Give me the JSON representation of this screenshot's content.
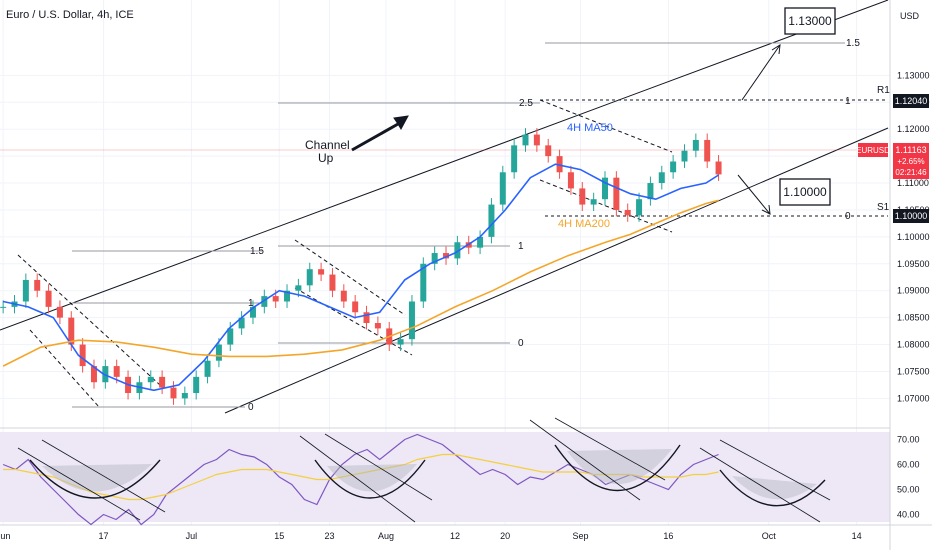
{
  "header": {
    "title": "Euro / U.S. Dollar, 4h, ICE",
    "currency": "USD"
  },
  "chart_data": [
    {
      "type": "candlestick",
      "title": "Euro / U.S. Dollar, 4h, ICE",
      "ylim": [
        1.0645,
        1.144
      ],
      "y_ticks": [
        "1.13000",
        "1.12500",
        "1.12000",
        "1.11500",
        "1.11000",
        "1.10500",
        "1.10000",
        "1.09500",
        "1.09000",
        "1.08500",
        "1.08000",
        "1.07500",
        "1.07000"
      ],
      "y_tick_values": [
        1.13,
        1.125,
        1.12,
        1.115,
        1.11,
        1.105,
        1.1,
        1.095,
        1.09,
        1.085,
        1.08,
        1.075,
        1.07
      ],
      "x_ticks": [
        "Jun",
        "17",
        "Jul",
        "15",
        "23",
        "Aug",
        "12",
        "20",
        "Sep",
        "16",
        "Oct",
        "14"
      ],
      "x_tick_days": [
        0,
        16,
        30,
        44,
        52,
        61,
        72,
        80,
        92,
        106,
        122,
        136
      ],
      "x_range_days": [
        -0.5,
        141
      ],
      "series": [
        {
          "name": "4H MA50",
          "color": "#2962ff",
          "x": [
            0,
            4,
            8,
            12,
            16,
            20,
            24,
            28,
            32,
            36,
            40,
            44,
            48,
            52,
            56,
            60,
            64,
            68,
            72,
            76,
            80,
            84,
            88,
            92,
            96,
            100,
            104,
            108,
            112,
            114
          ],
          "values": [
            1.088,
            1.087,
            1.085,
            1.078,
            1.0745,
            1.0725,
            1.0715,
            1.0725,
            1.077,
            1.083,
            1.087,
            1.09,
            1.089,
            1.087,
            1.085,
            1.086,
            1.092,
            1.095,
            1.097,
            1.1,
            1.105,
            1.111,
            1.1135,
            1.1125,
            1.11,
            1.108,
            1.107,
            1.109,
            1.11,
            1.1115
          ]
        },
        {
          "name": "4H MA200",
          "color": "#f4a62a",
          "x": [
            0,
            6,
            12,
            18,
            24,
            30,
            36,
            42,
            48,
            54,
            60,
            66,
            72,
            78,
            84,
            90,
            96,
            100,
            104,
            108,
            112,
            114
          ],
          "values": [
            1.076,
            1.0795,
            1.0808,
            1.0805,
            1.0795,
            1.0782,
            1.0778,
            1.0778,
            1.0782,
            1.079,
            1.0808,
            1.0835,
            1.087,
            1.09,
            1.0935,
            1.0965,
            1.099,
            1.1005,
            1.1025,
            1.1045,
            1.1062,
            1.1068
          ]
        }
      ],
      "candles_close": [
        1.087,
        1.088,
        1.092,
        1.09,
        1.087,
        1.085,
        1.08,
        1.076,
        1.073,
        1.076,
        1.074,
        1.071,
        1.073,
        1.074,
        1.072,
        1.07,
        1.071,
        1.074,
        1.077,
        1.08,
        1.083,
        1.085,
        1.087,
        1.089,
        1.088,
        1.09,
        1.091,
        1.094,
        1.093,
        1.09,
        1.088,
        1.086,
        1.084,
        1.083,
        1.08,
        1.081,
        1.088,
        1.095,
        1.097,
        1.096,
        1.099,
        1.098,
        1.1,
        1.106,
        1.112,
        1.117,
        1.119,
        1.117,
        1.115,
        1.112,
        1.109,
        1.106,
        1.107,
        1.111,
        1.105,
        1.104,
        1.107,
        1.11,
        1.112,
        1.114,
        1.116,
        1.118,
        1.114,
        1.1116
      ],
      "annotations": [
        {
          "text": "1.13000",
          "kind": "target-box"
        },
        {
          "text": "1.10000",
          "kind": "target-box"
        },
        {
          "text": "Channel",
          "kind": "label"
        },
        {
          "text": "Up",
          "kind": "label"
        },
        {
          "text": "4H MA50",
          "kind": "series-label",
          "color": "#2962ff"
        },
        {
          "text": "4H MA200",
          "kind": "series-label",
          "color": "#f4a62a"
        },
        {
          "text": "2.5",
          "kind": "fib"
        },
        {
          "text": "1.5",
          "kind": "fib"
        },
        {
          "text": "1",
          "kind": "fib"
        },
        {
          "text": "0",
          "kind": "fib"
        },
        {
          "text": "R1",
          "kind": "pivot"
        },
        {
          "text": "S1",
          "kind": "pivot"
        }
      ],
      "price_badges": [
        {
          "label": "R1",
          "value": "1.12040",
          "color": "#131722"
        },
        {
          "label": "EURUSD",
          "value": "1.11163",
          "change": "+2.65%",
          "countdown": "02:21:46",
          "color": "#f23645"
        },
        {
          "label": "S1",
          "value": "1.10000",
          "color": "#131722"
        }
      ]
    },
    {
      "type": "line",
      "title": "",
      "ylim": [
        37,
        73
      ],
      "y_ticks": [
        "70.00",
        "60.00",
        "50.00",
        "40.00"
      ],
      "y_tick_values": [
        70,
        60,
        50,
        40
      ],
      "series": [
        {
          "name": "",
          "color": "#7e57c2",
          "values": [
            60,
            58,
            62,
            55,
            50,
            45,
            40,
            36,
            40,
            38,
            42,
            36,
            40,
            48,
            52,
            56,
            60,
            62,
            66,
            64,
            63,
            60,
            55,
            52,
            46,
            44,
            54,
            60,
            64,
            66,
            62,
            66,
            70,
            72,
            70,
            68,
            64,
            60,
            56,
            58,
            56,
            52,
            55,
            54,
            57,
            60,
            58,
            56,
            52,
            54,
            56,
            54,
            52,
            50,
            56,
            60,
            62,
            64
          ]
        },
        {
          "name": "",
          "color": "#f4d03f",
          "values": [
            58,
            58,
            57,
            56,
            55,
            53,
            51,
            49,
            48,
            47,
            46,
            46,
            47,
            48,
            50,
            52,
            54,
            56,
            57,
            58,
            58,
            58,
            57,
            56,
            55,
            54,
            54,
            55,
            56,
            57,
            58,
            59,
            60,
            62,
            63,
            64,
            64,
            63,
            62,
            61,
            60,
            59,
            58,
            57,
            57,
            57,
            57,
            56,
            56,
            56,
            56,
            55,
            55,
            55,
            55,
            56,
            56,
            57
          ]
        }
      ],
      "levels": [
        70,
        30
      ]
    }
  ]
}
